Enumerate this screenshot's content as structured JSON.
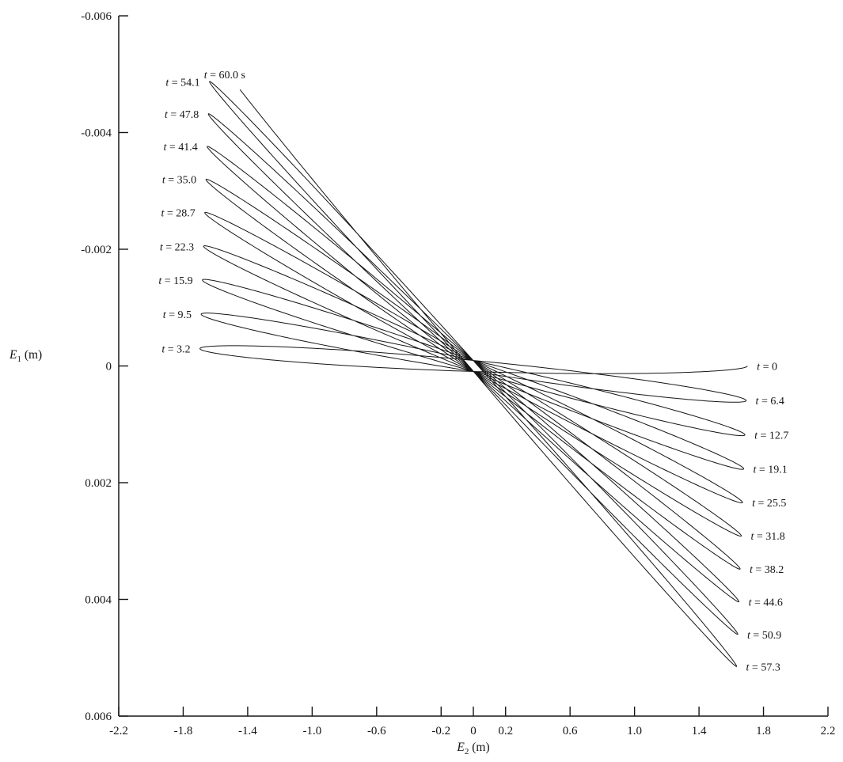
{
  "figure": {
    "kind": "scientific line chart of a precessing oscillation trace (rotating swing plane over 60 s)",
    "background_color": "#ffffff",
    "line_color": "#161616"
  },
  "axes": {
    "x": {
      "title_variable": "E",
      "title_subscript": "2",
      "title_units": " (m)",
      "min": -2.2,
      "max": 2.2,
      "tick_labels": [
        "-2.2",
        "-1.8",
        "-1.4",
        "-1.0",
        "-0.6",
        "-0.2",
        "0",
        "0.2",
        "0.6",
        "1.0",
        "1.4",
        "1.8",
        "2.2"
      ]
    },
    "y": {
      "title_variable": "E",
      "title_subscript": "1",
      "title_units": " (m)",
      "min": -0.006,
      "max": 0.006,
      "inverted": true,
      "tick_labels": [
        "-0.006",
        "-0.004",
        "-0.002",
        "0",
        "0.002",
        "0.004",
        "0.006"
      ]
    }
  },
  "chart_data": {
    "type": "line",
    "title": "",
    "xlabel": "E2 (m)",
    "ylabel": "E1 (m)",
    "xlim": [
      -2.2,
      2.2
    ],
    "ylim_top_to_bottom": [
      -0.006,
      0.006
    ],
    "grid": false,
    "legend": false,
    "trajectory_model": {
      "description": "Continuous trace of a damped oscillation whose plane precesses linearly in time, drawn as thin rotating ellipses: E2(t)=A(t)cos(wt), E1(t)=A(t)[Omega*t*cos(wt)+(Omega/w)*sin(wt)], A(t)=A0*exp(-k*t)",
      "period_s": 6.3667,
      "duration_s": 60.0,
      "initial_amplitude_m": 1.7,
      "amplitude_decay_per_s": 0.0007,
      "precession_rate_rad_per_s": 5.5e-05
    },
    "swing_extremes": {
      "right": [
        {
          "t_s": 0.0,
          "label": "t = 0",
          "E2_m": 1.7,
          "E1_m": 0.0
        },
        {
          "t_s": 6.4,
          "label": "t = 6.4",
          "E2_m": 1.692,
          "E1_m": 0.00059
        },
        {
          "t_s": 12.7,
          "label": "t = 12.7",
          "E2_m": 1.685,
          "E1_m": 0.00118
        },
        {
          "t_s": 19.1,
          "label": "t = 19.1",
          "E2_m": 1.677,
          "E1_m": 0.00176
        },
        {
          "t_s": 25.5,
          "label": "t = 25.5",
          "E2_m": 1.67,
          "E1_m": 0.00234
        },
        {
          "t_s": 31.8,
          "label": "t = 31.8",
          "E2_m": 1.662,
          "E1_m": 0.00291
        },
        {
          "t_s": 38.2,
          "label": "t = 38.2",
          "E2_m": 1.655,
          "E1_m": 0.00348
        },
        {
          "t_s": 44.6,
          "label": "t = 44.6",
          "E2_m": 1.648,
          "E1_m": 0.00404
        },
        {
          "t_s": 50.9,
          "label": "t = 50.9",
          "E2_m": 1.64,
          "E1_m": 0.0046
        },
        {
          "t_s": 57.3,
          "label": "t = 57.3",
          "E2_m": 1.633,
          "E1_m": 0.00515
        }
      ],
      "left": [
        {
          "t_s": 3.2,
          "label": "t = 3.2",
          "E2_m": -1.696,
          "E1_m": -0.0003
        },
        {
          "t_s": 9.5,
          "label": "t = 9.5",
          "E2_m": -1.689,
          "E1_m": -0.00089
        },
        {
          "t_s": 15.9,
          "label": "t = 15.9",
          "E2_m": -1.681,
          "E1_m": -0.00147
        },
        {
          "t_s": 22.3,
          "label": "t = 22.3",
          "E2_m": -1.674,
          "E1_m": -0.00205
        },
        {
          "t_s": 28.7,
          "label": "t = 28.7",
          "E2_m": -1.666,
          "E1_m": -0.00263
        },
        {
          "t_s": 35.0,
          "label": "t = 35.0",
          "E2_m": -1.659,
          "E1_m": -0.0032
        },
        {
          "t_s": 41.4,
          "label": "t = 41.4",
          "E2_m": -1.651,
          "E1_m": -0.00376
        },
        {
          "t_s": 47.8,
          "label": "t = 47.8",
          "E2_m": -1.644,
          "E1_m": -0.00432
        },
        {
          "t_s": 54.1,
          "label": "t = 54.1",
          "E2_m": -1.637,
          "E1_m": -0.00487
        }
      ],
      "trace_end": {
        "t_s": 60.0,
        "label": "t = 60.0 s",
        "E2_m": -1.45,
        "E1_m": -0.00466
      }
    }
  }
}
